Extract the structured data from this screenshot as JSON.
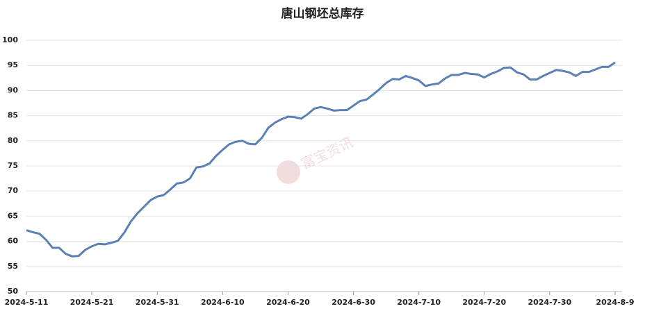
{
  "chart_data": {
    "type": "line",
    "title": "唐山钢坯总库存",
    "watermark": "富宝资讯",
    "x": [
      "2024-5-11",
      "2024-5-12",
      "2024-5-13",
      "2024-5-14",
      "2024-5-15",
      "2024-5-16",
      "2024-5-17",
      "2024-5-18",
      "2024-5-19",
      "2024-5-20",
      "2024-5-21",
      "2024-5-22",
      "2024-5-23",
      "2024-5-24",
      "2024-5-25",
      "2024-5-26",
      "2024-5-27",
      "2024-5-28",
      "2024-5-29",
      "2024-5-30",
      "2024-5-31",
      "2024-6-1",
      "2024-6-2",
      "2024-6-3",
      "2024-6-4",
      "2024-6-5",
      "2024-6-6",
      "2024-6-7",
      "2024-6-8",
      "2024-6-9",
      "2024-6-10",
      "2024-6-11",
      "2024-6-12",
      "2024-6-13",
      "2024-6-14",
      "2024-6-15",
      "2024-6-16",
      "2024-6-17",
      "2024-6-18",
      "2024-6-19",
      "2024-6-20",
      "2024-6-21",
      "2024-6-22",
      "2024-6-23",
      "2024-6-24",
      "2024-6-25",
      "2024-6-26",
      "2024-6-27",
      "2024-6-28",
      "2024-6-29",
      "2024-6-30",
      "2024-7-1",
      "2024-7-2",
      "2024-7-3",
      "2024-7-4",
      "2024-7-5",
      "2024-7-6",
      "2024-7-7",
      "2024-7-8",
      "2024-7-9",
      "2024-7-10",
      "2024-7-11",
      "2024-7-12",
      "2024-7-13",
      "2024-7-14",
      "2024-7-15",
      "2024-7-16",
      "2024-7-17",
      "2024-7-18",
      "2024-7-19",
      "2024-7-20",
      "2024-7-21",
      "2024-7-22",
      "2024-7-23",
      "2024-7-24",
      "2024-7-25",
      "2024-7-26",
      "2024-7-27",
      "2024-7-28",
      "2024-7-29",
      "2024-7-30",
      "2024-7-31",
      "2024-8-1",
      "2024-8-2",
      "2024-8-3",
      "2024-8-4",
      "2024-8-5",
      "2024-8-6",
      "2024-8-7",
      "2024-8-8",
      "2024-8-9"
    ],
    "series": [
      {
        "name": "唐山钢坯总库存",
        "color": "#5b80b4",
        "values": [
          62.2,
          61.8,
          61.5,
          60.3,
          58.7,
          58.7,
          57.5,
          57.0,
          57.1,
          58.3,
          59.0,
          59.5,
          59.4,
          59.7,
          60.1,
          61.8,
          64.0,
          65.6,
          66.9,
          68.2,
          68.9,
          69.2,
          70.3,
          71.5,
          71.7,
          72.5,
          74.7,
          74.9,
          75.5,
          77.0,
          78.2,
          79.3,
          79.8,
          80.0,
          79.4,
          79.3,
          80.6,
          82.6,
          83.6,
          84.3,
          84.8,
          84.7,
          84.4,
          85.3,
          86.4,
          86.7,
          86.4,
          86.0,
          86.1,
          86.1,
          87.0,
          87.9,
          88.2,
          89.2,
          90.3,
          91.5,
          92.3,
          92.2,
          92.9,
          92.5,
          92.0,
          90.9,
          91.2,
          91.4,
          92.4,
          93.1,
          93.1,
          93.5,
          93.3,
          93.2,
          92.6,
          93.3,
          93.8,
          94.5,
          94.6,
          93.6,
          93.2,
          92.2,
          92.2,
          92.9,
          93.5,
          94.1,
          93.9,
          93.6,
          92.9,
          93.7,
          93.7,
          94.2,
          94.7,
          94.7,
          95.6
        ]
      }
    ],
    "xticks": [
      "2024-5-11",
      "2024-5-21",
      "2024-5-31",
      "2024-6-10",
      "2024-6-20",
      "2024-6-30",
      "2024-7-10",
      "2024-7-20",
      "2024-7-30",
      "2024-8-9"
    ],
    "ylim": [
      50,
      100
    ],
    "yticks": [
      50,
      55,
      60,
      65,
      70,
      75,
      80,
      85,
      90,
      95,
      100
    ],
    "grid": true
  }
}
